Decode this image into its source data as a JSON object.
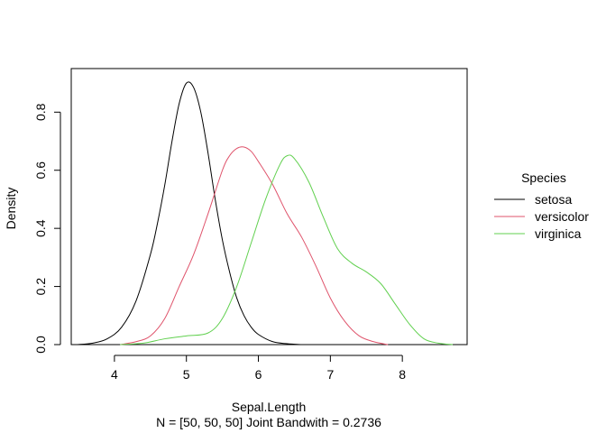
{
  "chart_data": {
    "type": "line",
    "title": "",
    "xlabel": "Sepal.Length",
    "subtitle": "N = [50, 50, 50]   Joint Bandwith = 0.2736",
    "ylabel": "Density",
    "xlim": [
      3.4,
      8.9
    ],
    "ylim": [
      0.0,
      0.95
    ],
    "x_ticks": [
      4,
      5,
      6,
      7,
      8
    ],
    "y_ticks": [
      0.0,
      0.2,
      0.4,
      0.6,
      0.8
    ],
    "y_tick_labels": [
      "0.0",
      "0.2",
      "0.4",
      "0.6",
      "0.8"
    ],
    "grid": false,
    "legend": {
      "title": "Species",
      "placement": "right"
    },
    "series": [
      {
        "name": "setosa",
        "color": "#000000",
        "points": [
          [
            3.48,
            0.0
          ],
          [
            3.7,
            0.005
          ],
          [
            3.9,
            0.02
          ],
          [
            4.1,
            0.06
          ],
          [
            4.3,
            0.15
          ],
          [
            4.5,
            0.31
          ],
          [
            4.6,
            0.42
          ],
          [
            4.7,
            0.55
          ],
          [
            4.8,
            0.7
          ],
          [
            4.9,
            0.83
          ],
          [
            5.0,
            0.9
          ],
          [
            5.1,
            0.885
          ],
          [
            5.2,
            0.8
          ],
          [
            5.3,
            0.66
          ],
          [
            5.4,
            0.5
          ],
          [
            5.5,
            0.36
          ],
          [
            5.6,
            0.25
          ],
          [
            5.7,
            0.16
          ],
          [
            5.8,
            0.1
          ],
          [
            5.9,
            0.06
          ],
          [
            6.0,
            0.035
          ],
          [
            6.2,
            0.01
          ],
          [
            6.4,
            0.003
          ],
          [
            6.6,
            0.0
          ]
        ]
      },
      {
        "name": "versicolor",
        "color": "#df536b",
        "points": [
          [
            4.08,
            0.0
          ],
          [
            4.3,
            0.01
          ],
          [
            4.5,
            0.03
          ],
          [
            4.7,
            0.09
          ],
          [
            4.9,
            0.2
          ],
          [
            5.1,
            0.31
          ],
          [
            5.3,
            0.45
          ],
          [
            5.5,
            0.6
          ],
          [
            5.6,
            0.65
          ],
          [
            5.7,
            0.675
          ],
          [
            5.8,
            0.68
          ],
          [
            5.9,
            0.665
          ],
          [
            6.0,
            0.63
          ],
          [
            6.2,
            0.55
          ],
          [
            6.4,
            0.45
          ],
          [
            6.6,
            0.37
          ],
          [
            6.8,
            0.27
          ],
          [
            7.0,
            0.16
          ],
          [
            7.2,
            0.08
          ],
          [
            7.4,
            0.03
          ],
          [
            7.6,
            0.01
          ],
          [
            7.8,
            0.0
          ]
        ]
      },
      {
        "name": "virginica",
        "color": "#61d04f",
        "points": [
          [
            4.08,
            0.0
          ],
          [
            4.4,
            0.005
          ],
          [
            4.7,
            0.02
          ],
          [
            5.0,
            0.03
          ],
          [
            5.3,
            0.04
          ],
          [
            5.5,
            0.09
          ],
          [
            5.7,
            0.2
          ],
          [
            5.9,
            0.35
          ],
          [
            6.1,
            0.5
          ],
          [
            6.3,
            0.62
          ],
          [
            6.4,
            0.65
          ],
          [
            6.5,
            0.64
          ],
          [
            6.7,
            0.56
          ],
          [
            6.9,
            0.44
          ],
          [
            7.1,
            0.33
          ],
          [
            7.3,
            0.28
          ],
          [
            7.5,
            0.25
          ],
          [
            7.7,
            0.21
          ],
          [
            7.9,
            0.14
          ],
          [
            8.1,
            0.07
          ],
          [
            8.3,
            0.02
          ],
          [
            8.5,
            0.005
          ],
          [
            8.7,
            0.0
          ]
        ]
      }
    ]
  }
}
